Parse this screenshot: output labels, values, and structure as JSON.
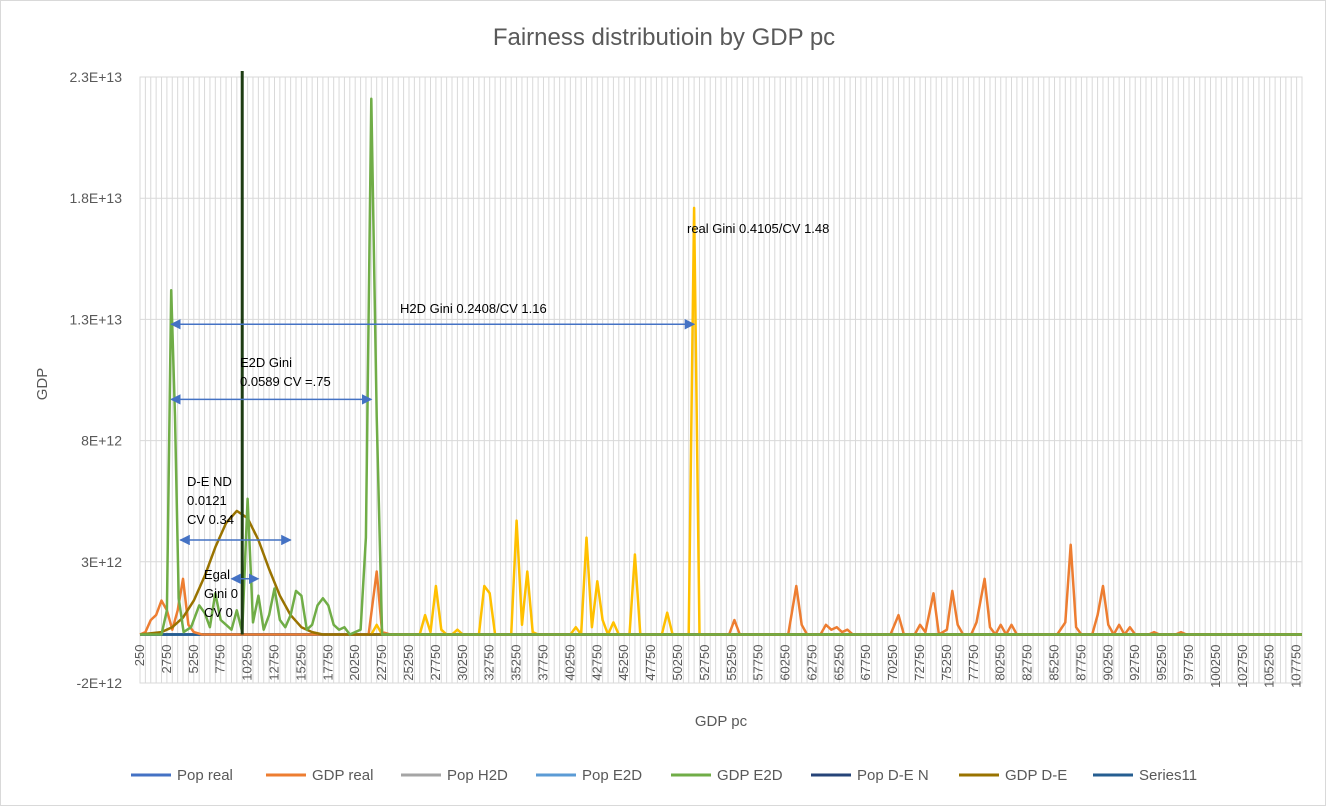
{
  "chart_data": {
    "type": "line",
    "title": "Fairness distributioin by GDP pc",
    "xlabel": "GDP pc",
    "ylabel": "GDP",
    "ylim": [
      -2000000000000.0,
      23000000000000.0
    ],
    "y_ticks": [
      "2.3E+13",
      "1.8E+13",
      "1.3E+13",
      "8E+12",
      "3E+12",
      "-2E+12"
    ],
    "y_tick_values": [
      23000000000000.0,
      18000000000000.0,
      13000000000000.0,
      8000000000000.0,
      3000000000000.0,
      -2000000000000.0
    ],
    "x_ticks": [
      "250",
      "2750",
      "5250",
      "7750",
      "10250",
      "12750",
      "15250",
      "17750",
      "20250",
      "22750",
      "25250",
      "27750",
      "30250",
      "32750",
      "35250",
      "37750",
      "40250",
      "42750",
      "45250",
      "47750",
      "50250",
      "52750",
      "55250",
      "57750",
      "60250",
      "62750",
      "65250",
      "67750",
      "70250",
      "72750",
      "75250",
      "77750",
      "80250",
      "82750",
      "85250",
      "87750",
      "90250",
      "92750",
      "95250",
      "97750",
      "100250",
      "102750",
      "105250",
      "107750"
    ],
    "x_tick_values": [
      250,
      2750,
      5250,
      7750,
      10250,
      12750,
      15250,
      17750,
      20250,
      22750,
      25250,
      27750,
      30250,
      32750,
      35250,
      37750,
      40250,
      42750,
      45250,
      47750,
      50250,
      52750,
      55250,
      57750,
      60250,
      62750,
      65250,
      67750,
      70250,
      72750,
      75250,
      77750,
      80250,
      82750,
      85250,
      87750,
      90250,
      92750,
      95250,
      97750,
      100250,
      102750,
      105250,
      107750
    ],
    "xlim": [
      250,
      108250
    ],
    "grid": true,
    "legend_position": "bottom",
    "legend": [
      "Pop real",
      "GDP real",
      "Pop H2D",
      "Pop E2D",
      "GDP E2D",
      "Pop D-E N",
      "GDP D-E",
      "Series11"
    ],
    "series": [
      {
        "name": "Pop real",
        "color": "#4472c4",
        "points": [
          [
            250,
            0
          ],
          [
            108250,
            0
          ]
        ]
      },
      {
        "name": "GDP real",
        "color": "#ed7d31",
        "points": [
          [
            250,
            0
          ],
          [
            750,
            100000000000.0
          ],
          [
            1250,
            600000000000.0
          ],
          [
            1750,
            800000000000.0
          ],
          [
            2250,
            1400000000000.0
          ],
          [
            2750,
            1000000000000.0
          ],
          [
            3250,
            200000000000.0
          ],
          [
            3750,
            1000000000000.0
          ],
          [
            4250,
            2300000000000.0
          ],
          [
            4750,
            400000000000.0
          ],
          [
            5250,
            100000000000.0
          ],
          [
            6000,
            0
          ],
          [
            21500,
            0
          ],
          [
            22250,
            2600000000000.0
          ],
          [
            22750,
            100000000000.0
          ],
          [
            23500,
            0
          ],
          [
            55000,
            0
          ],
          [
            55500,
            600000000000.0
          ],
          [
            56000,
            0
          ],
          [
            60500,
            0
          ],
          [
            61250,
            2000000000000.0
          ],
          [
            61750,
            400000000000.0
          ],
          [
            62250,
            0
          ],
          [
            63500,
            0
          ],
          [
            64000,
            400000000000.0
          ],
          [
            64500,
            200000000000.0
          ],
          [
            65000,
            300000000000.0
          ],
          [
            65500,
            100000000000.0
          ],
          [
            66000,
            200000000000.0
          ],
          [
            66500,
            0
          ],
          [
            70000,
            0
          ],
          [
            70750,
            800000000000.0
          ],
          [
            71250,
            0
          ],
          [
            72250,
            0
          ],
          [
            72750,
            400000000000.0
          ],
          [
            73250,
            100000000000.0
          ],
          [
            74000,
            1700000000000.0
          ],
          [
            74500,
            0
          ],
          [
            75250,
            200000000000.0
          ],
          [
            75750,
            1800000000000.0
          ],
          [
            76250,
            400000000000.0
          ],
          [
            76750,
            0
          ],
          [
            77500,
            0
          ],
          [
            78000,
            500000000000.0
          ],
          [
            78750,
            2300000000000.0
          ],
          [
            79250,
            300000000000.0
          ],
          [
            79750,
            0
          ],
          [
            80250,
            400000000000.0
          ],
          [
            80750,
            0
          ],
          [
            81250,
            400000000000.0
          ],
          [
            81750,
            0
          ],
          [
            85500,
            0
          ],
          [
            86250,
            500000000000.0
          ],
          [
            86750,
            3700000000000.0
          ],
          [
            87250,
            300000000000.0
          ],
          [
            87750,
            0
          ],
          [
            88750,
            0
          ],
          [
            89250,
            800000000000.0
          ],
          [
            89750,
            2000000000000.0
          ],
          [
            90250,
            400000000000.0
          ],
          [
            90750,
            0
          ],
          [
            91250,
            400000000000.0
          ],
          [
            91750,
            0
          ],
          [
            92250,
            300000000000.0
          ],
          [
            92750,
            0
          ],
          [
            94000,
            0
          ],
          [
            94500,
            100000000000.0
          ],
          [
            95000,
            0
          ],
          [
            96500,
            0
          ],
          [
            97000,
            100000000000.0
          ],
          [
            97500,
            0
          ],
          [
            108250,
            0
          ]
        ]
      },
      {
        "name": "Pop H2D",
        "color": "#a5a5a5",
        "points": [
          [
            250,
            0
          ],
          [
            108250,
            0
          ]
        ]
      },
      {
        "name": "Pop E2D",
        "color": "#5b9bd5",
        "points": [
          [
            250,
            0
          ],
          [
            108250,
            0
          ]
        ]
      },
      {
        "name": "GDP E2D",
        "color": "#70ad47",
        "points": [
          [
            250,
            0
          ],
          [
            2250,
            0
          ],
          [
            2750,
            1000000000000.0
          ],
          [
            3150,
            14200000000000.0
          ],
          [
            3500,
            9000000000000.0
          ],
          [
            3850,
            1500000000000.0
          ],
          [
            4300,
            100000000000.0
          ],
          [
            5000,
            300000000000.0
          ],
          [
            5750,
            1200000000000.0
          ],
          [
            6250,
            900000000000.0
          ],
          [
            6750,
            300000000000.0
          ],
          [
            7250,
            1700000000000.0
          ],
          [
            7750,
            600000000000.0
          ],
          [
            8250,
            400000000000.0
          ],
          [
            8750,
            200000000000.0
          ],
          [
            9250,
            1000000000000.0
          ],
          [
            9750,
            100000000000.0
          ],
          [
            10250,
            5600000000000.0
          ],
          [
            10750,
            500000000000.0
          ],
          [
            11250,
            1600000000000.0
          ],
          [
            11750,
            200000000000.0
          ],
          [
            12250,
            800000000000.0
          ],
          [
            12750,
            1900000000000.0
          ],
          [
            13250,
            600000000000.0
          ],
          [
            13750,
            300000000000.0
          ],
          [
            14250,
            800000000000.0
          ],
          [
            14750,
            1800000000000.0
          ],
          [
            15250,
            1600000000000.0
          ],
          [
            15750,
            200000000000.0
          ],
          [
            16250,
            400000000000.0
          ],
          [
            16750,
            1200000000000.0
          ],
          [
            17250,
            1500000000000.0
          ],
          [
            17750,
            1200000000000.0
          ],
          [
            18250,
            400000000000.0
          ],
          [
            18750,
            200000000000.0
          ],
          [
            19250,
            300000000000.0
          ],
          [
            19750,
            0
          ],
          [
            20750,
            200000000000.0
          ],
          [
            21250,
            4000000000000.0
          ],
          [
            21750,
            22100000000000.0
          ],
          [
            22250,
            9000000000000.0
          ],
          [
            22750,
            0
          ],
          [
            23250,
            0
          ],
          [
            108250,
            0
          ]
        ]
      },
      {
        "name": "Pop D-E N",
        "color": "#264478",
        "points": [
          [
            250,
            0
          ],
          [
            108250,
            0
          ]
        ]
      },
      {
        "name": "GDP D-E",
        "color": "#997300",
        "points": [
          [
            250,
            0
          ],
          [
            2250,
            100000000000.0
          ],
          [
            3250,
            300000000000.0
          ],
          [
            4250,
            700000000000.0
          ],
          [
            5250,
            1400000000000.0
          ],
          [
            6250,
            2400000000000.0
          ],
          [
            7250,
            3600000000000.0
          ],
          [
            8250,
            4600000000000.0
          ],
          [
            9250,
            5100000000000.0
          ],
          [
            10250,
            4800000000000.0
          ],
          [
            11250,
            3900000000000.0
          ],
          [
            12250,
            2700000000000.0
          ],
          [
            13250,
            1600000000000.0
          ],
          [
            14250,
            800000000000.0
          ],
          [
            15250,
            300000000000.0
          ],
          [
            16250,
            100000000000.0
          ],
          [
            17250,
            0
          ],
          [
            108250,
            0
          ]
        ]
      },
      {
        "name": "Series11",
        "color": "#255e91",
        "points": [
          [
            250,
            0
          ],
          [
            108250,
            0
          ]
        ]
      },
      {
        "name": "H2D peak",
        "legend": false,
        "color": "#ffc000",
        "points": [
          [
            21750,
            0
          ],
          [
            22250,
            400000000000.0
          ],
          [
            22750,
            0
          ],
          [
            26250,
            0
          ],
          [
            26750,
            800000000000.0
          ],
          [
            27250,
            100000000000.0
          ],
          [
            27750,
            2000000000000.0
          ],
          [
            28250,
            200000000000.0
          ],
          [
            28750,
            0
          ],
          [
            29250,
            0
          ],
          [
            29750,
            200000000000.0
          ],
          [
            30250,
            0
          ],
          [
            31750,
            0
          ],
          [
            32250,
            2000000000000.0
          ],
          [
            32750,
            1700000000000.0
          ],
          [
            33250,
            0
          ],
          [
            34750,
            0
          ],
          [
            35250,
            4700000000000.0
          ],
          [
            35750,
            400000000000.0
          ],
          [
            36250,
            2600000000000.0
          ],
          [
            36750,
            100000000000.0
          ],
          [
            37250,
            0
          ],
          [
            40250,
            0
          ],
          [
            40750,
            300000000000.0
          ],
          [
            41250,
            0
          ],
          [
            41750,
            4000000000000.0
          ],
          [
            42250,
            300000000000.0
          ],
          [
            42750,
            2200000000000.0
          ],
          [
            43250,
            600000000000.0
          ],
          [
            43750,
            0
          ],
          [
            44250,
            500000000000.0
          ],
          [
            44750,
            0
          ],
          [
            45750,
            0
          ],
          [
            46250,
            3300000000000.0
          ],
          [
            46750,
            0
          ],
          [
            48750,
            0
          ],
          [
            49250,
            900000000000.0
          ],
          [
            49750,
            0
          ],
          [
            51250,
            0
          ],
          [
            51750,
            17600000000000.0
          ],
          [
            52250,
            0
          ],
          [
            108250,
            0
          ]
        ]
      }
    ],
    "vertical_line": {
      "x": 9750,
      "color": "#1e3d14"
    },
    "annotations": [
      {
        "lines": [
          "real Gini 0.4105/CV 1.48"
        ]
      },
      {
        "lines": [
          "H2D Gini 0.2408/CV 1.16"
        ]
      },
      {
        "lines": [
          "E2D Gini",
          "0.0589 CV =.75"
        ]
      },
      {
        "lines": [
          "D-E ND",
          "0.0121",
          "CV  0.34"
        ]
      },
      {
        "lines": [
          "Egal",
          "Gini 0",
          "CV 0"
        ]
      }
    ],
    "arrows": [
      {
        "from": [
          3150,
          12800000000000.0
        ],
        "to": [
          51750,
          12800000000000.0
        ]
      },
      {
        "from": [
          3150,
          9700000000000.0
        ],
        "to": [
          21750,
          9700000000000.0
        ]
      },
      {
        "from": [
          4000,
          3900000000000.0
        ],
        "to": [
          14250,
          3900000000000.0
        ]
      },
      {
        "from": [
          8750,
          2300000000000.0
        ],
        "to": [
          11250,
          2300000000000.0
        ]
      }
    ]
  }
}
